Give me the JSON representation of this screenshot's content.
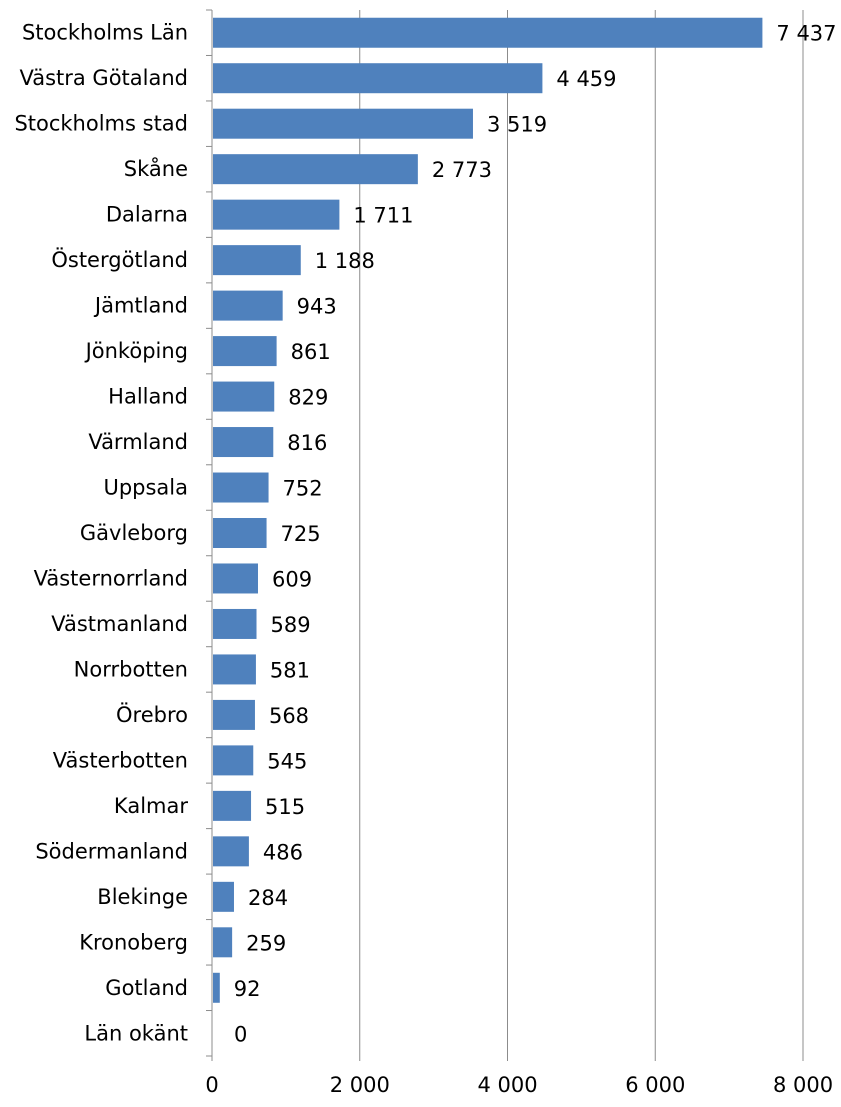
{
  "chart_data": {
    "type": "bar",
    "orientation": "horizontal",
    "title": "",
    "xlabel": "",
    "ylabel": "",
    "categories": [
      "Stockholms Län",
      "Västra Götaland",
      "Stockholms stad",
      "Skåne",
      "Dalarna",
      "Östergötland",
      "Jämtland",
      "Jönköping",
      "Halland",
      "Värmland",
      "Uppsala",
      "Gävleborg",
      "Västernorrland",
      "Västmanland",
      "Norrbotten",
      "Örebro",
      "Västerbotten",
      "Kalmar",
      "Södermanland",
      "Blekinge",
      "Kronoberg",
      "Gotland",
      "Län okänt"
    ],
    "values": [
      7437,
      4459,
      3519,
      2773,
      1711,
      1188,
      943,
      861,
      829,
      816,
      752,
      725,
      609,
      589,
      581,
      568,
      545,
      515,
      486,
      284,
      259,
      92,
      0
    ],
    "value_labels": [
      "7 437",
      "4 459",
      "3 519",
      "2 773",
      "1 711",
      "1 188",
      "943",
      "861",
      "829",
      "816",
      "752",
      "725",
      "609",
      "589",
      "581",
      "568",
      "545",
      "515",
      "486",
      "284",
      "259",
      "92",
      "0"
    ],
    "xlim": [
      0,
      8000
    ],
    "x_ticks": [
      0,
      2000,
      4000,
      6000,
      8000
    ],
    "x_tick_labels": [
      "0",
      "2 000",
      "4 000",
      "6 000",
      "8 000"
    ],
    "grid": "vertical",
    "legend": "none",
    "bar_color": "#4f81bd",
    "grid_color": "#8c8c8c"
  }
}
